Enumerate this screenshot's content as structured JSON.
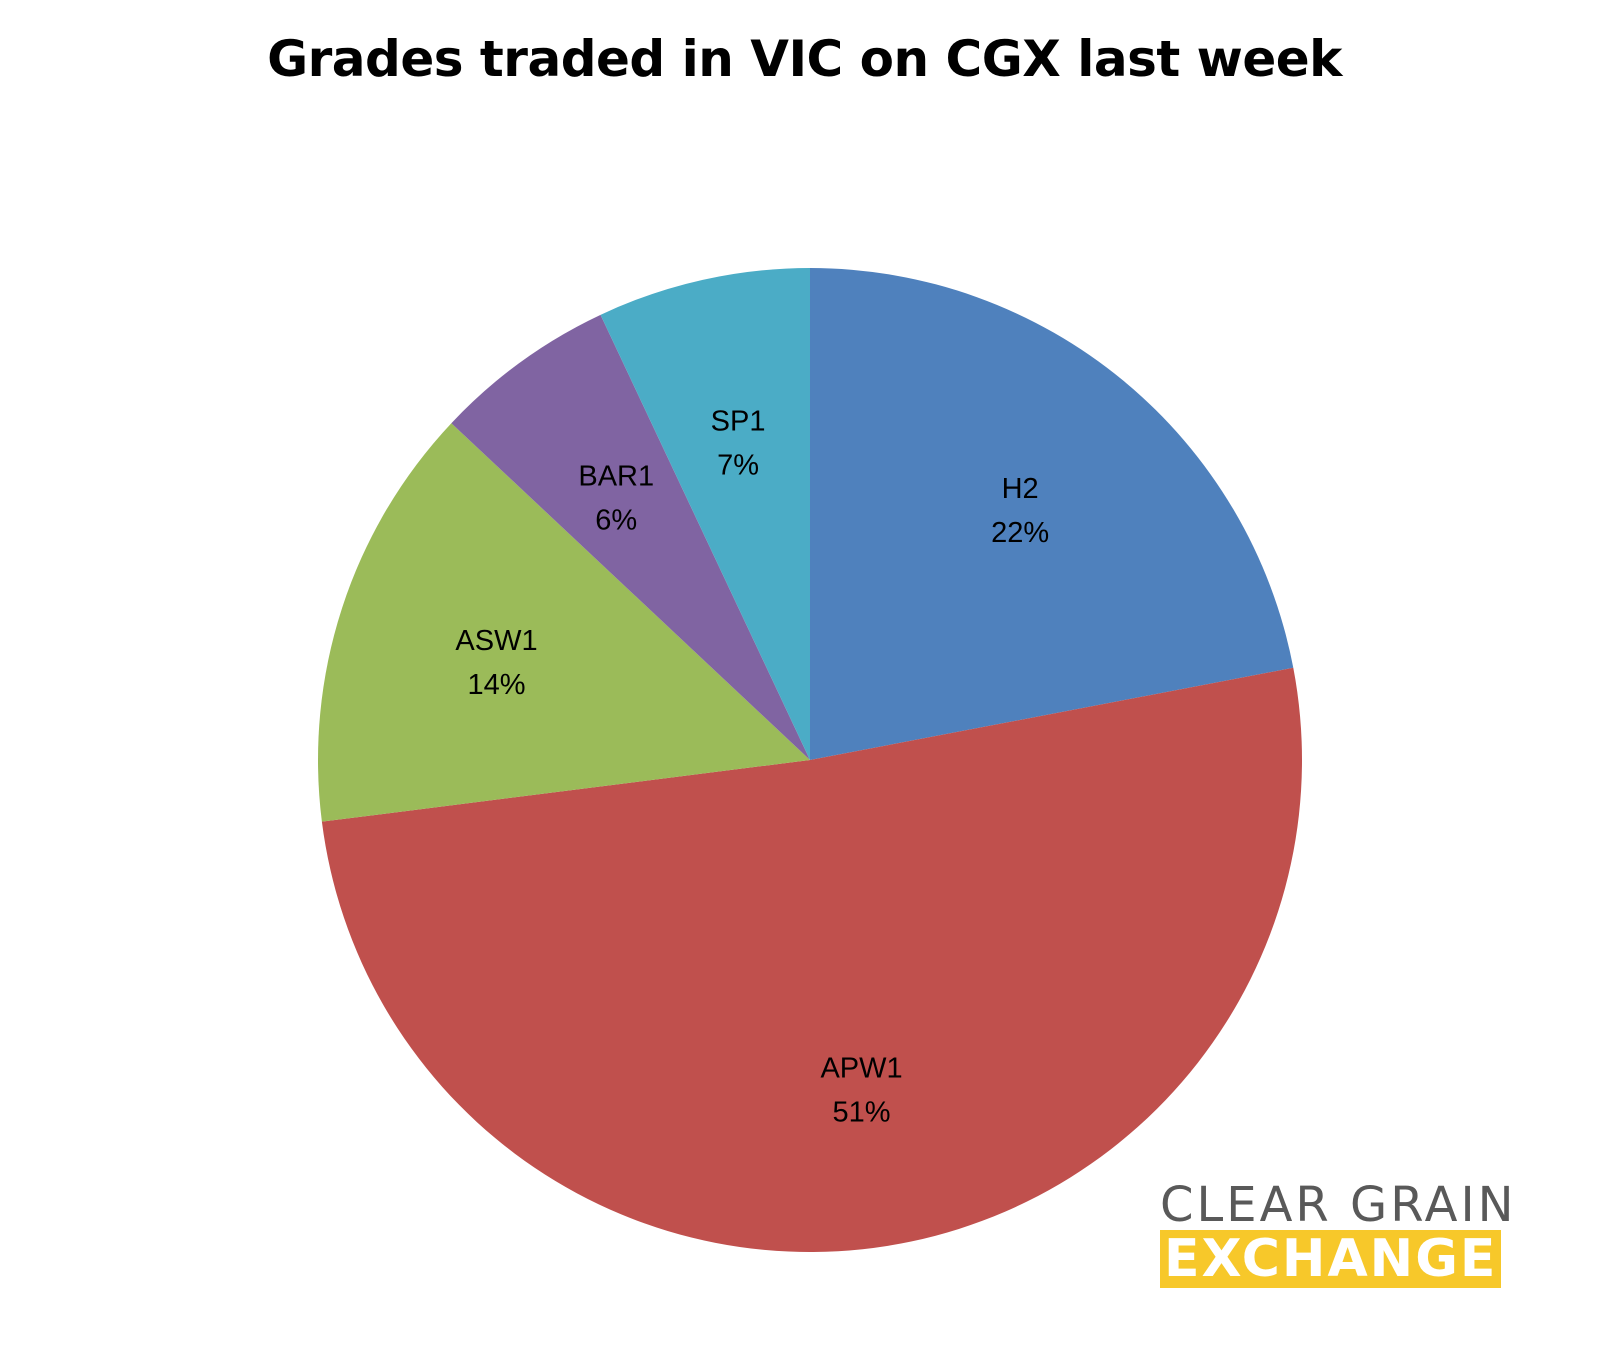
{
  "chart_data": {
    "type": "pie",
    "title": "Grades traded in VIC on CGX last week",
    "start": "top",
    "direction": "clockwise",
    "slices": [
      {
        "label": "H2",
        "value": 22,
        "value_label": "22%",
        "color": "#4f81bd"
      },
      {
        "label": "APW1",
        "value": 51,
        "value_label": "51%",
        "color": "#c0504d"
      },
      {
        "label": "ASW1",
        "value": 14,
        "value_label": "14%",
        "color": "#9bbb59"
      },
      {
        "label": "BAR1",
        "value": 6,
        "value_label": "6%",
        "color": "#8064a2"
      },
      {
        "label": "SP1",
        "value": 7,
        "value_label": "7%",
        "color": "#4bacc6"
      }
    ]
  },
  "logo": {
    "line1": "CLEAR GRAIN",
    "line2": "EXCHANGE",
    "text_color": "#595959",
    "accent_color": "#f7c82a"
  }
}
